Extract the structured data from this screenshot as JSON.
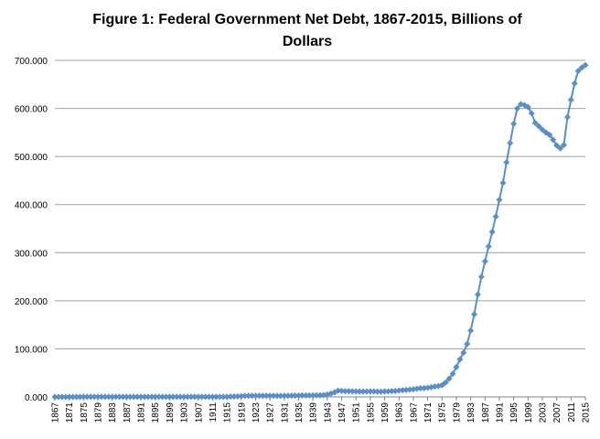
{
  "chart_data": {
    "type": "line",
    "title": "Figure 1: Federal Government Net Debt, 1867-2015, Billions of Dollars",
    "x": [
      1867,
      1868,
      1869,
      1870,
      1871,
      1872,
      1873,
      1874,
      1875,
      1876,
      1877,
      1878,
      1879,
      1880,
      1881,
      1882,
      1883,
      1884,
      1885,
      1886,
      1887,
      1888,
      1889,
      1890,
      1891,
      1892,
      1893,
      1894,
      1895,
      1896,
      1897,
      1898,
      1899,
      1900,
      1901,
      1902,
      1903,
      1904,
      1905,
      1906,
      1907,
      1908,
      1909,
      1910,
      1911,
      1912,
      1913,
      1914,
      1915,
      1916,
      1917,
      1918,
      1919,
      1920,
      1921,
      1922,
      1923,
      1924,
      1925,
      1926,
      1927,
      1928,
      1929,
      1930,
      1931,
      1932,
      1933,
      1934,
      1935,
      1936,
      1937,
      1938,
      1939,
      1940,
      1941,
      1942,
      1943,
      1944,
      1945,
      1946,
      1947,
      1948,
      1949,
      1950,
      1951,
      1952,
      1953,
      1954,
      1955,
      1956,
      1957,
      1958,
      1959,
      1960,
      1961,
      1962,
      1963,
      1964,
      1965,
      1966,
      1967,
      1968,
      1969,
      1970,
      1971,
      1972,
      1973,
      1974,
      1975,
      1976,
      1977,
      1978,
      1979,
      1980,
      1981,
      1982,
      1983,
      1984,
      1985,
      1986,
      1987,
      1988,
      1989,
      1990,
      1991,
      1992,
      1993,
      1994,
      1995,
      1996,
      1997,
      1998,
      1999,
      2000,
      2001,
      2002,
      2003,
      2004,
      2005,
      2006,
      2007,
      2008,
      2009,
      2010,
      2011,
      2012,
      2013,
      2014,
      2015
    ],
    "values": [
      0.08,
      0.08,
      0.09,
      0.09,
      0.09,
      0.1,
      0.1,
      0.11,
      0.12,
      0.13,
      0.13,
      0.14,
      0.14,
      0.15,
      0.16,
      0.16,
      0.17,
      0.18,
      0.2,
      0.22,
      0.23,
      0.23,
      0.24,
      0.24,
      0.24,
      0.24,
      0.24,
      0.25,
      0.25,
      0.26,
      0.26,
      0.26,
      0.27,
      0.27,
      0.27,
      0.27,
      0.27,
      0.26,
      0.27,
      0.27,
      0.26,
      0.28,
      0.28,
      0.33,
      0.34,
      0.34,
      0.31,
      0.34,
      0.45,
      0.62,
      0.88,
      1.19,
      1.57,
      2.25,
      2.34,
      2.34,
      2.45,
      2.42,
      2.42,
      2.39,
      2.35,
      2.3,
      2.23,
      2.18,
      2.26,
      2.38,
      2.6,
      2.73,
      2.85,
      2.98,
      3.05,
      3.08,
      3.15,
      3.27,
      3.65,
      4.05,
      5.0,
      7.0,
      9.5,
      13.0,
      12.7,
      12.0,
      11.8,
      11.6,
      11.4,
      11.2,
      11.1,
      11.1,
      11.3,
      11.3,
      11.0,
      11.0,
      11.4,
      11.6,
      12.1,
      12.4,
      13.2,
      14.1,
      14.6,
      15.1,
      16.0,
      17.2,
      18.0,
      18.3,
      19.0,
      20.2,
      21.6,
      22.7,
      24.5,
      30,
      38,
      48,
      62,
      78,
      92,
      110,
      138,
      172,
      213,
      250,
      282,
      313,
      343,
      375,
      410,
      445,
      488,
      528,
      568,
      600,
      609,
      607,
      603,
      590,
      570,
      563,
      556,
      550,
      545,
      535,
      523,
      517,
      524,
      582,
      618,
      652,
      678,
      685,
      690
    ],
    "color": "#5b8ec7",
    "xlim": [
      1867,
      2015
    ],
    "xticks": [
      1867,
      1871,
      1875,
      1879,
      1883,
      1887,
      1891,
      1895,
      1899,
      1903,
      1907,
      1911,
      1915,
      1919,
      1923,
      1927,
      1931,
      1935,
      1939,
      1943,
      1947,
      1951,
      1955,
      1959,
      1963,
      1967,
      1971,
      1975,
      1979,
      1983,
      1987,
      1991,
      1995,
      1999,
      2003,
      2007,
      2011,
      2015
    ],
    "ylim": [
      0,
      700
    ],
    "yticks": [
      {
        "value": 0,
        "label": "0.000"
      },
      {
        "value": 100,
        "label": "100.000"
      },
      {
        "value": 200,
        "label": "200.000"
      },
      {
        "value": 300,
        "label": "300.000"
      },
      {
        "value": 400,
        "label": "400.000"
      },
      {
        "value": 500,
        "label": "500.000"
      },
      {
        "value": 600,
        "label": "600.000"
      },
      {
        "value": 700,
        "label": "700.000"
      }
    ],
    "grid": true
  }
}
